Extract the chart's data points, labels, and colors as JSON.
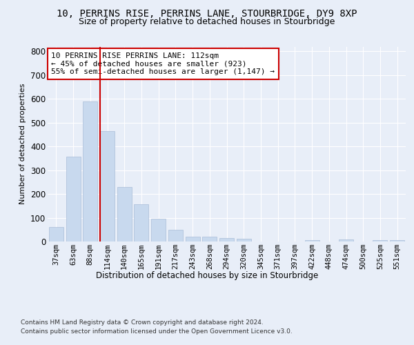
{
  "title1": "10, PERRINS RISE, PERRINS LANE, STOURBRIDGE, DY9 8XP",
  "title2": "Size of property relative to detached houses in Stourbridge",
  "xlabel": "Distribution of detached houses by size in Stourbridge",
  "ylabel": "Number of detached properties",
  "footer1": "Contains HM Land Registry data © Crown copyright and database right 2024.",
  "footer2": "Contains public sector information licensed under the Open Government Licence v3.0.",
  "categories": [
    "37sqm",
    "63sqm",
    "88sqm",
    "114sqm",
    "140sqm",
    "165sqm",
    "191sqm",
    "217sqm",
    "243sqm",
    "268sqm",
    "294sqm",
    "320sqm",
    "345sqm",
    "371sqm",
    "397sqm",
    "422sqm",
    "448sqm",
    "474sqm",
    "500sqm",
    "525sqm",
    "551sqm"
  ],
  "values": [
    60,
    357,
    590,
    465,
    230,
    158,
    95,
    48,
    20,
    20,
    15,
    12,
    0,
    0,
    0,
    5,
    0,
    8,
    0,
    5,
    5
  ],
  "bar_color": "#c8d9ee",
  "bar_edge_color": "#aabdd8",
  "vline_color": "#cc0000",
  "annotation_text": "10 PERRINS RISE PERRINS LANE: 112sqm\n← 45% of detached houses are smaller (923)\n55% of semi-detached houses are larger (1,147) →",
  "annotation_box_color": "#ffffff",
  "annotation_box_edge": "#cc0000",
  "ylim": [
    0,
    820
  ],
  "yticks": [
    0,
    100,
    200,
    300,
    400,
    500,
    600,
    700,
    800
  ],
  "bg_color": "#e8eef8",
  "plot_bg_color": "#e8eef8",
  "grid_color": "#ffffff",
  "title1_fontsize": 10,
  "title2_fontsize": 9
}
